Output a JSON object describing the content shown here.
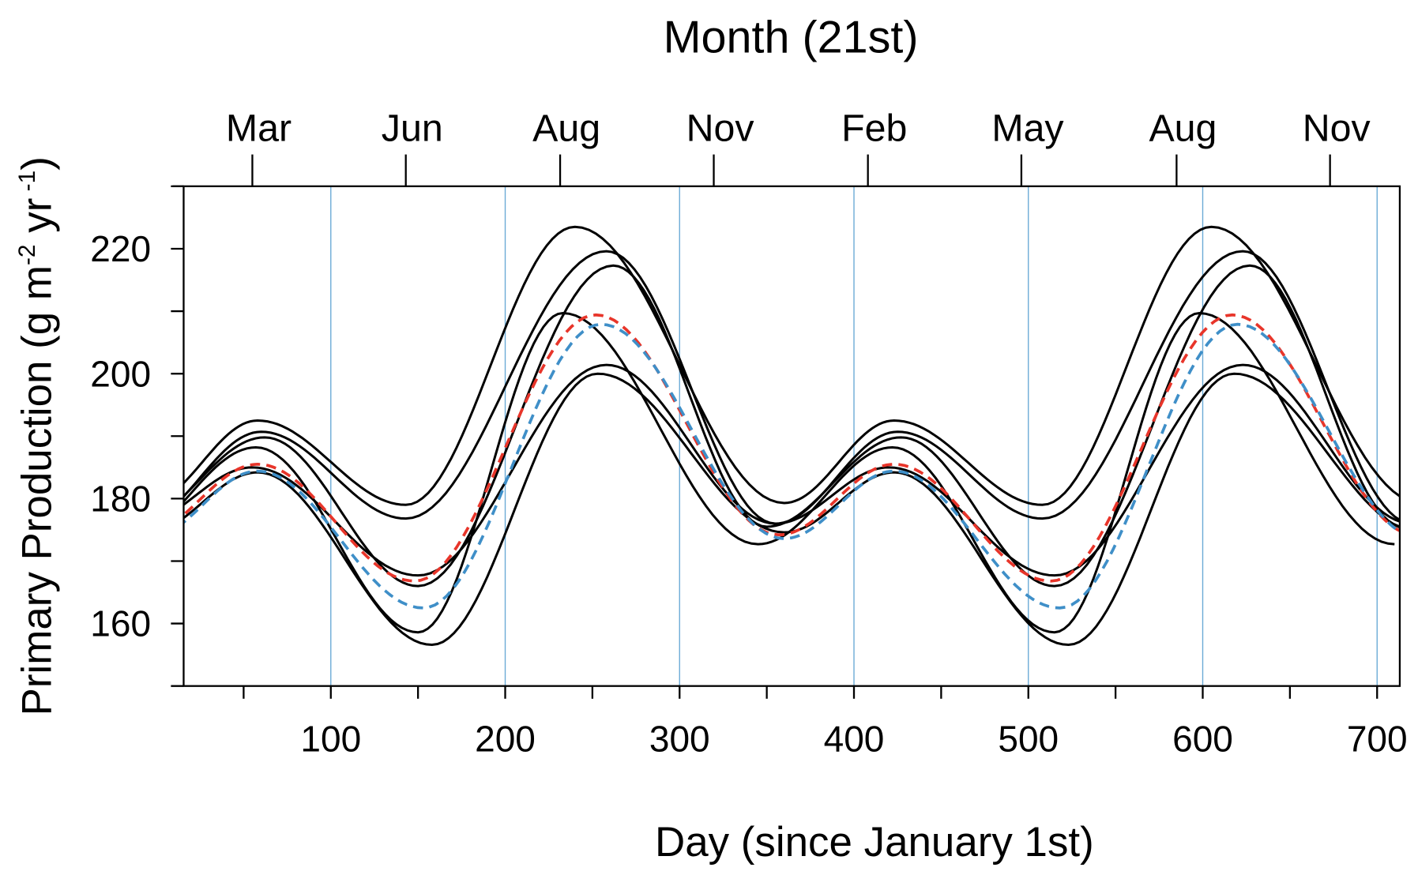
{
  "chart_data": {
    "type": "line",
    "title": "Month (21st)",
    "xlabel": "Day (since January 1st)",
    "ylabel": {
      "text": "Primary Production (g m",
      "sup1": "-2",
      "mid": " yr",
      "sup2": " -1",
      "end": ")"
    },
    "xlim": [
      15.6,
      713
    ],
    "ylim": [
      150,
      230
    ],
    "x_ticks": [
      100,
      200,
      300,
      400,
      500,
      600,
      700
    ],
    "x_minor_ticks": [
      50,
      150,
      250,
      350,
      450,
      550,
      650
    ],
    "y_ticks": [
      160,
      180,
      200,
      220
    ],
    "y_minor_ticks": [
      150,
      170,
      190,
      210,
      230
    ],
    "vertical_gridlines": [
      100,
      200,
      300,
      400,
      500,
      600,
      700
    ],
    "gridline_color": "#6aaad6",
    "top_axis_months": [
      {
        "label": "Mar",
        "day": 55
      },
      {
        "label": "Jun",
        "day": 143
      },
      {
        "label": "Aug",
        "day": 231.5
      },
      {
        "label": "Nov",
        "day": 319.6
      },
      {
        "label": "Feb",
        "day": 408
      },
      {
        "label": "May",
        "day": 496
      },
      {
        "label": "Aug",
        "day": 585
      },
      {
        "label": "Nov",
        "day": 673
      }
    ],
    "series": [
      {
        "color": "#000000",
        "style": "solid",
        "points": [
          [
            -5,
            179.3
          ],
          [
            58,
            192.5
          ],
          [
            143,
            179
          ],
          [
            240,
            223.5
          ],
          [
            360,
            179.3
          ],
          [
            423,
            192.5
          ],
          [
            508,
            179
          ],
          [
            605,
            223.5
          ],
          [
            725,
            179.3
          ]
        ]
      },
      {
        "color": "#000000",
        "style": "solid",
        "points": [
          [
            -10,
            176
          ],
          [
            60,
            190.7
          ],
          [
            143,
            176.8
          ],
          [
            258,
            219.6
          ],
          [
            355,
            176
          ],
          [
            425,
            190.7
          ],
          [
            508,
            176.8
          ],
          [
            623,
            219.6
          ],
          [
            720,
            176
          ]
        ]
      },
      {
        "color": "#000000",
        "style": "solid",
        "points": [
          [
            -15,
            175.5
          ],
          [
            62,
            189.8
          ],
          [
            150,
            166
          ],
          [
            262,
            217.3
          ],
          [
            350,
            175.5
          ],
          [
            427,
            189.8
          ],
          [
            515,
            166
          ],
          [
            627,
            217.3
          ],
          [
            715,
            175.5
          ]
        ]
      },
      {
        "color": "#000000",
        "style": "solid",
        "points": [
          [
            -20,
            172.7
          ],
          [
            57,
            188.2
          ],
          [
            150,
            158.6
          ],
          [
            233,
            209.7
          ],
          [
            345,
            172.7
          ],
          [
            422,
            188.2
          ],
          [
            515,
            158.6
          ],
          [
            598,
            209.7
          ],
          [
            710,
            172.7
          ]
        ]
      },
      {
        "color": "#000000",
        "style": "solid",
        "points": [
          [
            -10,
            176
          ],
          [
            55,
            185
          ],
          [
            150,
            167.7
          ],
          [
            258,
            201.4
          ],
          [
            355,
            176
          ],
          [
            420,
            185
          ],
          [
            515,
            167.7
          ],
          [
            623,
            201.4
          ],
          [
            720,
            176
          ]
        ]
      },
      {
        "color": "#000000",
        "style": "solid",
        "points": [
          [
            -5,
            174.6
          ],
          [
            58,
            184.2
          ],
          [
            158,
            156.6
          ],
          [
            253,
            200
          ],
          [
            360,
            174.6
          ],
          [
            423,
            184.2
          ],
          [
            523,
            156.6
          ],
          [
            618,
            200
          ],
          [
            725,
            174.6
          ]
        ]
      },
      {
        "color": "#e8352a",
        "style": "dashed",
        "points": [
          [
            -8,
            174.2
          ],
          [
            58,
            185.5
          ],
          [
            148,
            166.8
          ],
          [
            252,
            209.4
          ],
          [
            357,
            174.2
          ],
          [
            423,
            185.5
          ],
          [
            513,
            166.8
          ],
          [
            617,
            209.4
          ],
          [
            722,
            174.2
          ]
        ]
      },
      {
        "color": "#3f8fc8",
        "style": "dashed",
        "points": [
          [
            -5,
            173.6
          ],
          [
            58,
            184.4
          ],
          [
            153,
            162.5
          ],
          [
            255,
            207.9
          ],
          [
            360,
            173.6
          ],
          [
            423,
            184.4
          ],
          [
            518,
            162.5
          ],
          [
            620,
            207.9
          ],
          [
            725,
            173.6
          ]
        ]
      }
    ]
  }
}
